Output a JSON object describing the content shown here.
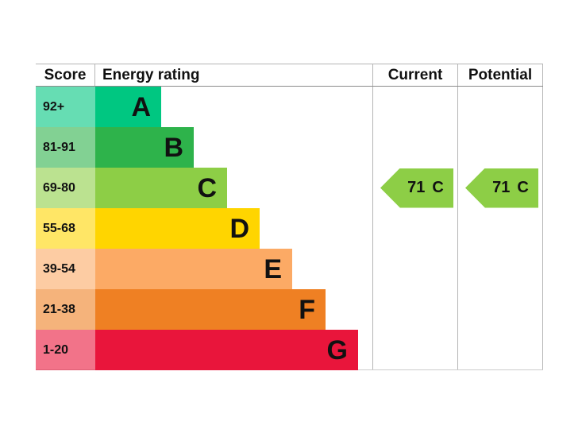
{
  "chart_data": {
    "type": "bar",
    "columns": {
      "score": "Score",
      "rating": "Energy rating",
      "current": "Current",
      "potential": "Potential"
    },
    "bands": [
      {
        "score_range": "92+",
        "letter": "A",
        "color": "#00c781"
      },
      {
        "score_range": "81-91",
        "letter": "B",
        "color": "#2eb34b"
      },
      {
        "score_range": "69-80",
        "letter": "C",
        "color": "#8dce46"
      },
      {
        "score_range": "55-68",
        "letter": "D",
        "color": "#ffd500"
      },
      {
        "score_range": "39-54",
        "letter": "E",
        "color": "#fcaa65"
      },
      {
        "score_range": "21-38",
        "letter": "F",
        "color": "#ef8023"
      },
      {
        "score_range": "1-20",
        "letter": "G",
        "color": "#e9153b"
      }
    ],
    "current": {
      "value": "71",
      "band": "C",
      "arrow_color": "#8dce46"
    },
    "potential": {
      "value": "71",
      "band": "C",
      "arrow_color": "#8dce46"
    }
  }
}
